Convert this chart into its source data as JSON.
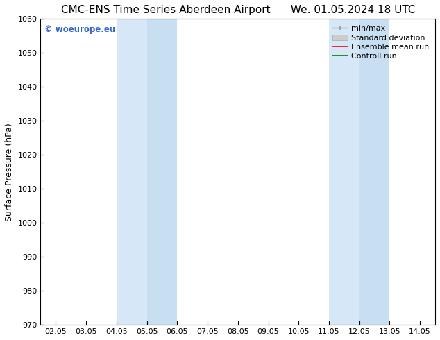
{
  "title": "CMC-ENS Time Series Aberdeen Airport      We. 01.05.2024 18 UTC",
  "ylabel": "Surface Pressure (hPa)",
  "xlabel": "",
  "watermark": "© woeurope.eu",
  "ylim": [
    970,
    1060
  ],
  "yticks": [
    970,
    980,
    990,
    1000,
    1010,
    1020,
    1030,
    1040,
    1050,
    1060
  ],
  "xtick_labels": [
    "02.05",
    "03.05",
    "04.05",
    "05.05",
    "06.05",
    "07.05",
    "08.05",
    "09.05",
    "10.05",
    "11.05",
    "12.05",
    "13.05",
    "14.05"
  ],
  "xtick_positions": [
    0,
    1,
    2,
    3,
    4,
    5,
    6,
    7,
    8,
    9,
    10,
    11,
    12
  ],
  "xmin": -0.5,
  "xmax": 12.5,
  "shaded_bands": [
    {
      "xmin": 2.0,
      "xmax": 3.0,
      "color": "#d6e8f7"
    },
    {
      "xmin": 3.0,
      "xmax": 4.0,
      "color": "#c8dff2"
    },
    {
      "xmin": 9.0,
      "xmax": 10.0,
      "color": "#d6e8f7"
    },
    {
      "xmin": 10.0,
      "xmax": 11.0,
      "color": "#c8dff2"
    }
  ],
  "background_color": "#ffffff",
  "legend_items": [
    {
      "label": "min/max",
      "type": "minmax",
      "color": "#999999"
    },
    {
      "label": "Standard deviation",
      "type": "stddev",
      "color": "#cccccc"
    },
    {
      "label": "Ensemble mean run",
      "type": "line",
      "color": "#ff0000",
      "linewidth": 1.2
    },
    {
      "label": "Controll run",
      "type": "line",
      "color": "#008000",
      "linewidth": 1.2
    }
  ],
  "watermark_color": "#3366cc",
  "title_fontsize": 11,
  "tick_fontsize": 8,
  "ylabel_fontsize": 9,
  "legend_fontsize": 8
}
